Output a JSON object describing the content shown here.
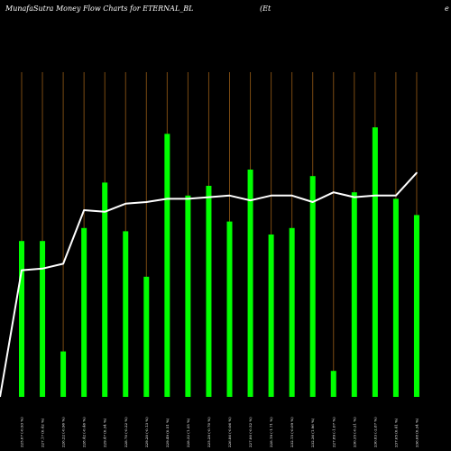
{
  "header": {
    "title": "MunafaSutra  Money Flow  Charts for ETERNAL_BL",
    "title_suffix": "(Et",
    "title_edge": "e"
  },
  "chart_data": {
    "type": "bar",
    "title": "MunafaSutra  Money Flow  Charts for ETERNAL_BL",
    "categories": [
      "225.07 (-0.93 %)",
      "227.17 (0.42 %)",
      "226.22 (-0.96 %)",
      "228.42 (-0.46 %)",
      "229.47 (0.34 %)",
      "228.70 (-0.22 %)",
      "229.20 (-0.13 %)",
      "229.49 (0.51 %)",
      "228.32 (1.35 %)",
      "225.28 (-0.70 %)",
      "226.86 (-0.06 %)",
      "227.00 (-0.52 %)",
      "228.19 (-1.71 %)",
      "232.15 (-0.09 %)",
      "232.36 (1.96 %)",
      "227.89 (-1.07 %)",
      "230.35 (-0.21 %)",
      "230.83 (-2.87 %)",
      "237.65 (0.41 %)",
      "236.68 (0.34 %)"
    ],
    "series": [
      {
        "values": [
          48,
          48,
          14,
          52,
          66,
          51,
          37,
          81,
          62,
          65,
          54,
          70,
          50,
          52,
          68,
          8,
          63,
          83,
          61,
          56
        ],
        "color": "#00ff00"
      },
      {
        "values": [
          39,
          39.5,
          41,
          57.5,
          57,
          59.5,
          60,
          61,
          61,
          61.5,
          62,
          60.5,
          62,
          62,
          60,
          63,
          61.5,
          62,
          62,
          69
        ],
        "color": "#ffffff"
      }
    ],
    "ylim": [
      0,
      100
    ],
    "grid": true,
    "legend": "none"
  }
}
